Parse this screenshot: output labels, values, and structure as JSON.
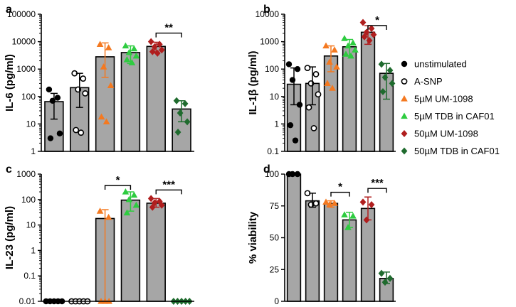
{
  "colors": {
    "unstimulated": "#000000",
    "a_snp": "#000000",
    "um5": "#f47920",
    "tdb5": "#2ecc40",
    "um50": "#b01e1e",
    "tdb50": "#1f6b2e",
    "bar_fill": "#a6a6a6"
  },
  "legend": [
    {
      "key": "unstimulated",
      "label": "unstimulated",
      "marker": "circle-filled"
    },
    {
      "key": "a_snp",
      "label": "A-SNP",
      "marker": "circle-open"
    },
    {
      "key": "um5",
      "label": "5µM UM-1098",
      "marker": "triangle"
    },
    {
      "key": "tdb5",
      "label": "5µM TDB in CAF01",
      "marker": "triangle"
    },
    {
      "key": "um50",
      "label": "50µM UM-1098",
      "marker": "diamond"
    },
    {
      "key": "tdb50",
      "label": "50µM TDB in CAF01",
      "marker": "diamond"
    }
  ],
  "chart_data": [
    {
      "panel": "a",
      "type": "bar",
      "scale": "log",
      "ylabel": "IL-6 (pg/ml)",
      "ylim": [
        1,
        100000
      ],
      "ticks": [
        1,
        10,
        100,
        1000,
        10000,
        100000
      ],
      "tick_labels": [
        "1",
        "10",
        "100",
        "1000",
        "10000",
        "100000"
      ],
      "categories": [
        "unstimulated",
        "A-SNP",
        "5µM UM-1098",
        "5µM TDB in CAF01",
        "50µM UM-1098",
        "50µM TDB in CAF01"
      ],
      "groups": [
        {
          "key": "unstimulated",
          "mean": 65,
          "err": [
            15,
            130
          ],
          "points": [
            180,
            90,
            70,
            4.5,
            3
          ]
        },
        {
          "key": "a_snp",
          "mean": 210,
          "err": [
            40,
            700
          ],
          "points": [
            700,
            450,
            180,
            130,
            6,
            4.8
          ]
        },
        {
          "key": "um5",
          "mean": 2800,
          "err": [
            500,
            9000
          ],
          "points": [
            8000,
            6000,
            1200,
            250,
            18,
            12
          ]
        },
        {
          "key": "tdb5",
          "mean": 4000,
          "err": [
            1600,
            7000
          ],
          "points": [
            7000,
            5500,
            4000,
            3000,
            2200,
            1700
          ]
        },
        {
          "key": "um50",
          "mean": 6700,
          "err": [
            4000,
            9500
          ],
          "points": [
            10000,
            8000,
            6500,
            5000,
            4300,
            3800
          ]
        },
        {
          "key": "tdb50",
          "mean": 35,
          "err": [
            12,
            70
          ],
          "points": [
            70,
            55,
            25,
            12,
            5
          ]
        }
      ],
      "significance": [
        {
          "from": 4,
          "to": 5,
          "label": "**"
        }
      ]
    },
    {
      "panel": "b",
      "type": "bar",
      "scale": "log",
      "ylabel": "IL-1β (pg/ml)",
      "ylim": [
        0.1,
        10000
      ],
      "ticks": [
        0.1,
        1,
        10,
        100,
        1000,
        10000
      ],
      "tick_labels": [
        "0.1",
        "1",
        "10",
        "100",
        "1000",
        "10000"
      ],
      "categories": [
        "unstimulated",
        "A-SNP",
        "5µM UM-1098",
        "5µM TDB in CAF01",
        "50µM UM-1098",
        "50µM TDB in CAF01"
      ],
      "groups": [
        {
          "key": "unstimulated",
          "mean": 28,
          "err": [
            5,
            110
          ],
          "points": [
            150,
            100,
            40,
            5,
            0.9,
            0.25
          ]
        },
        {
          "key": "a_snp",
          "mean": 30,
          "err": [
            5,
            120
          ],
          "points": [
            110,
            65,
            30,
            12,
            4,
            0.7
          ]
        },
        {
          "key": "um5",
          "mean": 300,
          "err": [
            80,
            700
          ],
          "points": [
            700,
            500,
            180,
            120,
            30,
            20
          ]
        },
        {
          "key": "tdb5",
          "mean": 650,
          "err": [
            300,
            1200
          ],
          "points": [
            1300,
            900,
            700,
            500,
            350,
            300
          ]
        },
        {
          "key": "um50",
          "mean": 2200,
          "err": [
            800,
            3800
          ],
          "points": [
            5000,
            3000,
            2200,
            1800,
            1500,
            1100
          ]
        },
        {
          "key": "tdb50",
          "mean": 70,
          "err": [
            8,
            160
          ],
          "points": [
            150,
            90,
            50,
            30,
            15
          ]
        }
      ],
      "significance": [
        {
          "from": 4,
          "to": 5,
          "label": "*"
        }
      ]
    },
    {
      "panel": "c",
      "type": "bar",
      "scale": "log",
      "ylabel": "IL-23 (pg/ml)",
      "ylim": [
        0.01,
        1000
      ],
      "ticks": [
        0.01,
        0.1,
        1,
        10,
        100,
        1000
      ],
      "tick_labels": [
        "0.01",
        "0.1",
        "1",
        "10",
        "100",
        "1000"
      ],
      "categories": [
        "unstimulated",
        "A-SNP",
        "5µM UM-1098",
        "5µM TDB in CAF01",
        "50µM UM-1098",
        "50µM TDB in CAF01"
      ],
      "groups": [
        {
          "key": "unstimulated",
          "mean": 0.01,
          "err": null,
          "points": [
            0.01,
            0.01,
            0.01,
            0.01,
            0.01
          ]
        },
        {
          "key": "a_snp",
          "mean": 0.01,
          "err": null,
          "points": [
            0.01,
            0.01,
            0.01,
            0.01,
            0.01
          ]
        },
        {
          "key": "um5",
          "mean": 18,
          "err": [
            0.01,
            40
          ],
          "points": [
            35,
            20,
            0.01,
            0.01,
            0.01
          ]
        },
        {
          "key": "tdb5",
          "mean": 95,
          "err": [
            35,
            200
          ],
          "points": [
            200,
            150,
            100,
            60,
            30
          ]
        },
        {
          "key": "um50",
          "mean": 72,
          "err": [
            50,
            110
          ],
          "points": [
            110,
            85,
            75,
            60,
            50
          ]
        },
        {
          "key": "tdb50",
          "mean": 0.01,
          "err": null,
          "points": [
            0.01,
            0.01,
            0.01,
            0.01,
            0.01
          ]
        }
      ],
      "significance": [
        {
          "from": 2,
          "to": 3,
          "label": "*"
        },
        {
          "from": 4,
          "to": 5,
          "label": "***"
        }
      ]
    },
    {
      "panel": "d",
      "type": "bar",
      "scale": "linear",
      "ylabel": "% viability",
      "ylim": [
        0,
        100
      ],
      "ticks": [
        0,
        25,
        50,
        75,
        100
      ],
      "tick_labels": [
        "0",
        "25",
        "50",
        "75",
        "100"
      ],
      "categories": [
        "unstimulated",
        "A-SNP",
        "5µM UM-1098",
        "5µM TDB in CAF01",
        "50µM UM-1098",
        "50µM TDB in CAF01"
      ],
      "groups": [
        {
          "key": "unstimulated",
          "mean": 100,
          "err": null,
          "points": [
            100,
            100,
            100
          ]
        },
        {
          "key": "a_snp",
          "mean": 79,
          "err": [
            74,
            85
          ],
          "points": [
            85,
            77,
            76
          ]
        },
        {
          "key": "um5",
          "mean": 77,
          "err": [
            74,
            79
          ],
          "points": [
            78,
            77,
            76
          ]
        },
        {
          "key": "tdb5",
          "mean": 64,
          "err": [
            58,
            70
          ],
          "points": [
            68,
            67,
            58
          ]
        },
        {
          "key": "um50",
          "mean": 73,
          "err": [
            64,
            82
          ],
          "points": [
            78,
            76,
            64
          ]
        },
        {
          "key": "tdb50",
          "mean": 18,
          "err": [
            14,
            23
          ],
          "points": [
            22,
            18,
            15
          ]
        }
      ],
      "significance": [
        {
          "from": 2,
          "to": 3,
          "label": "*"
        },
        {
          "from": 4,
          "to": 5,
          "label": "***"
        }
      ]
    }
  ]
}
